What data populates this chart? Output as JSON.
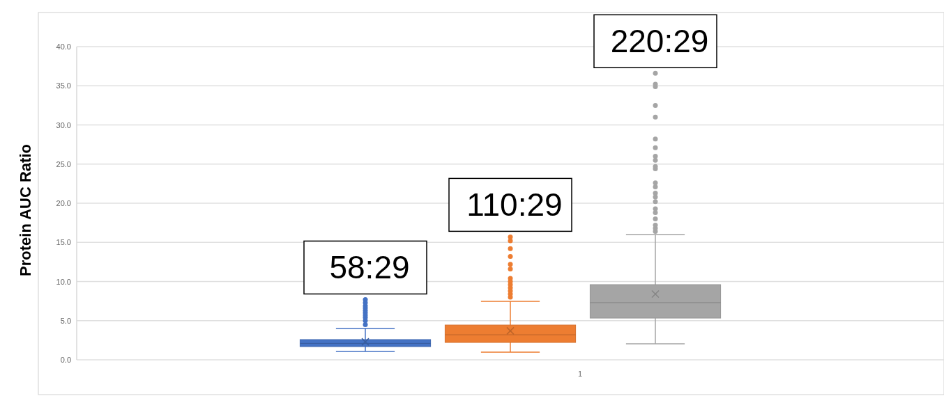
{
  "chart_data": {
    "type": "box",
    "ylabel": "Protein AUC Ratio",
    "categories": [
      "1"
    ],
    "ylim": [
      0,
      40
    ],
    "yticks": [
      {
        "value": 0,
        "label": "0.0"
      },
      {
        "value": 5,
        "label": "5.0"
      },
      {
        "value": 10,
        "label": "10.0"
      },
      {
        "value": 15,
        "label": "15.0"
      },
      {
        "value": 20,
        "label": "20.0"
      },
      {
        "value": 25,
        "label": "25.0"
      },
      {
        "value": 30,
        "label": "30.0"
      },
      {
        "value": 35,
        "label": "35.0"
      },
      {
        "value": 40,
        "label": "40.0"
      }
    ],
    "grid": "y",
    "annotations": [
      "58:29",
      "110:29",
      "220:29"
    ],
    "series": [
      {
        "color": "#4472c4",
        "boxes": [
          {
            "low": 1.07,
            "q1": 1.69,
            "median": 2.1,
            "q3": 2.58,
            "high": 4.0,
            "mean": 2.3,
            "outliers": [
              4.5,
              5.0,
              5.4,
              5.7,
              6.0,
              6.3,
              6.6,
              6.9,
              7.3,
              7.7
            ]
          }
        ]
      },
      {
        "color": "#ed7d31",
        "boxes": [
          {
            "low": 0.98,
            "q1": 2.22,
            "median": 3.2,
            "q3": 4.44,
            "high": 7.47,
            "mean": 3.7,
            "outliers": [
              8.0,
              8.4,
              8.8,
              9.2,
              9.6,
              10.0,
              10.4,
              11.6,
              12.2,
              13.2,
              14.2,
              15.2,
              15.7
            ]
          }
        ]
      },
      {
        "color": "#a5a5a5",
        "boxes": [
          {
            "low": 2.04,
            "q1": 5.33,
            "median": 7.3,
            "q3": 9.6,
            "high": 16.0,
            "mean": 8.4,
            "outliers": [
              16.4,
              16.8,
              17.2,
              18.0,
              18.8,
              19.3,
              20.2,
              20.8,
              21.3,
              22.1,
              22.6,
              24.4,
              24.7,
              25.5,
              26.0,
              27.1,
              28.2,
              31.0,
              32.5,
              34.9,
              35.2,
              36.6
            ]
          }
        ]
      }
    ]
  }
}
